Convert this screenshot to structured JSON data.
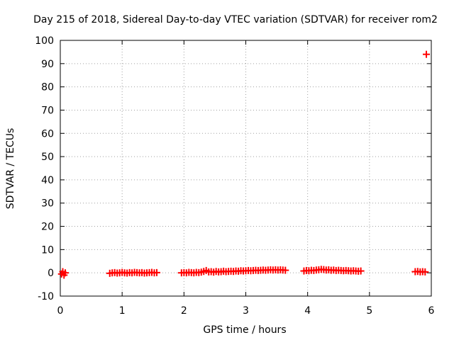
{
  "chart_data": {
    "type": "scatter",
    "title": "Day 215 of 2018, Sidereal Day-to-day VTEC variation (SDTVAR) for receiver rom2",
    "xlabel": "GPS time / hours",
    "ylabel": "SDTVAR / TECUs",
    "xlim": [
      0,
      6
    ],
    "ylim": [
      -10,
      100
    ],
    "xticks": [
      "0",
      "1",
      "2",
      "3",
      "4",
      "5",
      "6"
    ],
    "yticks": [
      "-10",
      "0",
      "10",
      "20",
      "30",
      "40",
      "50",
      "60",
      "70",
      "80",
      "90",
      "100"
    ],
    "grid": true,
    "marker": "+",
    "series": [
      {
        "color": "#ff0000",
        "x": [
          0.02,
          0.04,
          0.06,
          0.08,
          0.8,
          0.84,
          0.88,
          0.92,
          0.96,
          1.0,
          1.04,
          1.08,
          1.12,
          1.16,
          1.2,
          1.24,
          1.28,
          1.32,
          1.36,
          1.4,
          1.44,
          1.48,
          1.52,
          1.56,
          1.96,
          2.0,
          2.04,
          2.08,
          2.12,
          2.16,
          2.2,
          2.24,
          2.28,
          2.32,
          2.36,
          2.4,
          2.44,
          2.48,
          2.52,
          2.56,
          2.6,
          2.64,
          2.68,
          2.72,
          2.76,
          2.8,
          2.84,
          2.88,
          2.92,
          2.96,
          3.0,
          3.04,
          3.08,
          3.12,
          3.16,
          3.2,
          3.24,
          3.28,
          3.32,
          3.36,
          3.4,
          3.44,
          3.48,
          3.52,
          3.56,
          3.6,
          3.64,
          3.94,
          3.98,
          4.02,
          4.06,
          4.1,
          4.14,
          4.18,
          4.22,
          4.26,
          4.3,
          4.34,
          4.38,
          4.42,
          4.46,
          4.5,
          4.54,
          4.58,
          4.62,
          4.66,
          4.7,
          4.74,
          4.78,
          4.82,
          4.86,
          5.74,
          5.78,
          5.82,
          5.86,
          5.9,
          5.92
        ],
        "y": [
          -0.5,
          0.5,
          -1.0,
          0.0,
          -0.2,
          0.0,
          0.1,
          -0.1,
          0.0,
          0.2,
          0.0,
          -0.1,
          0.1,
          0.0,
          0.2,
          0.1,
          0.0,
          0.1,
          -0.1,
          0.0,
          0.1,
          0.2,
          0.0,
          0.1,
          0.0,
          0.1,
          0.0,
          0.2,
          0.1,
          0.0,
          0.2,
          0.1,
          0.3,
          0.6,
          1.0,
          0.4,
          0.5,
          0.3,
          0.6,
          0.4,
          0.5,
          0.7,
          0.5,
          0.6,
          0.7,
          0.6,
          0.8,
          0.7,
          0.9,
          0.8,
          0.9,
          1.0,
          0.9,
          1.0,
          1.1,
          1.0,
          1.1,
          1.2,
          1.1,
          1.2,
          1.3,
          1.2,
          1.3,
          1.2,
          1.3,
          1.2,
          1.1,
          0.8,
          1.0,
          0.9,
          1.1,
          1.0,
          1.2,
          1.3,
          1.5,
          1.4,
          1.2,
          1.3,
          1.1,
          1.2,
          1.0,
          1.1,
          1.0,
          0.9,
          1.0,
          0.9,
          0.8,
          0.9,
          0.8,
          0.7,
          0.8,
          0.5,
          0.6,
          0.4,
          0.5,
          0.4,
          94.0
        ]
      }
    ]
  }
}
